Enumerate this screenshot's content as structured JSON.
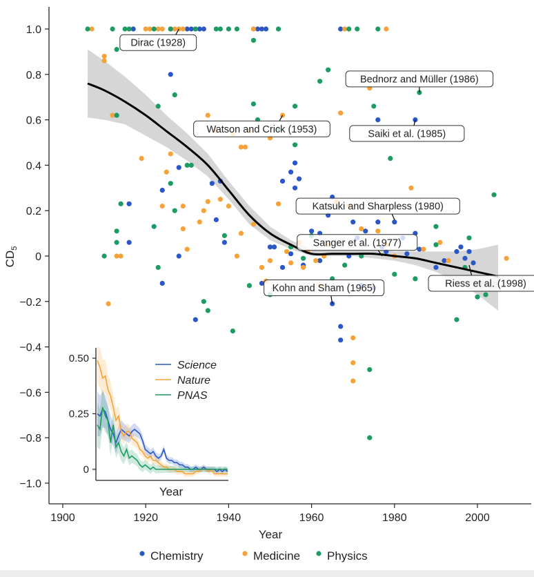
{
  "chart_data": {
    "type": "scatter",
    "title": "",
    "xlabel": "Year",
    "ylabel": "CD5",
    "ylabel_main": "CD",
    "ylabel_sub": "5",
    "xlim": [
      1895,
      2012
    ],
    "ylim": [
      -1.08,
      1.1
    ],
    "xticks": [
      1900,
      1920,
      1940,
      1960,
      1980,
      2000
    ],
    "xtick_labels": [
      "1900",
      "1920",
      "1940",
      "1960",
      "1980",
      "2000"
    ],
    "yticks": [
      1.0,
      0.8,
      0.6,
      0.4,
      0.2,
      0,
      -0.2,
      -0.4,
      -0.6,
      -0.8,
      -1.0
    ],
    "ytick_labels": [
      "1.0",
      "0.8",
      "0.6",
      "0.4",
      "0.2",
      "0",
      "−0.2",
      "−0.4",
      "−0.6",
      "−0.8",
      "−1.0"
    ],
    "grid": false,
    "legend_position": "bottom",
    "colors": {
      "Chemistry": "#2a56c6",
      "Medicine": "#f5a23a",
      "Physics": "#1e9a63"
    },
    "series": [
      {
        "name": "Chemistry",
        "points": [
          [
            1917,
            1.0
          ],
          [
            1926,
            1.0
          ],
          [
            1930,
            1.0
          ],
          [
            1931,
            1.0
          ],
          [
            1932,
            1.0
          ],
          [
            1933,
            1.0
          ],
          [
            1934,
            1.0
          ],
          [
            1946,
            1.0
          ],
          [
            1947,
            1.0
          ],
          [
            1948,
            1.0
          ],
          [
            1949,
            1.0
          ],
          [
            1967,
            1.0
          ],
          [
            1926,
            0.8
          ],
          [
            1916,
            0.23
          ],
          [
            1916,
            0.06
          ],
          [
            1924,
            0.29
          ],
          [
            1928,
            0.39
          ],
          [
            1932,
            -0.28
          ],
          [
            1936,
            0.32
          ],
          [
            1938,
            0.33
          ],
          [
            1937,
            0.16
          ],
          [
            1939,
            0.06
          ],
          [
            1950,
            0.04
          ],
          [
            1951,
            0.04
          ],
          [
            1953,
            0.33
          ],
          [
            1955,
            0.37
          ],
          [
            1956,
            0.3
          ],
          [
            1957,
            0.34
          ],
          [
            1956,
            0.41
          ],
          [
            1960,
            0.11
          ],
          [
            1962,
            0.1
          ],
          [
            1964,
            0.18
          ],
          [
            1965,
            0.26
          ],
          [
            1965,
            -0.21
          ],
          [
            1967,
            -0.31
          ],
          [
            1967,
            -0.37
          ],
          [
            1970,
            0.15
          ],
          [
            1971,
            0.08
          ],
          [
            1973,
            0.11
          ],
          [
            1976,
            0.15
          ],
          [
            1977,
            0.04
          ],
          [
            1978,
            0.02
          ],
          [
            1980,
            0.15
          ],
          [
            1982,
            0.08
          ],
          [
            1983,
            0.01
          ],
          [
            1985,
            0.1
          ],
          [
            1986,
            0.03
          ],
          [
            1976,
            0.6
          ],
          [
            1985,
            0.6
          ],
          [
            1995,
            0.02
          ],
          [
            1996,
            0.04
          ],
          [
            1997,
            -0.01
          ],
          [
            1998,
            0.02
          ],
          [
            1999,
            -0.03
          ],
          [
            1962,
            -0.02
          ],
          [
            1958,
            -0.04
          ],
          [
            1955,
            0.01
          ],
          [
            1953,
            -0.05
          ],
          [
            1972,
            -0.13
          ],
          [
            1975,
            -0.14
          ],
          [
            1990,
            -0.05
          ],
          [
            1992,
            -0.02
          ],
          [
            1969,
            0.0
          ],
          [
            1948,
            -0.12
          ],
          [
            1924,
            -0.12
          ],
          [
            1928,
            0.0
          ]
        ]
      },
      {
        "name": "Medicine",
        "points": [
          [
            1907,
            1.0
          ],
          [
            1920,
            1.0
          ],
          [
            1921,
            1.0
          ],
          [
            1923,
            1.0
          ],
          [
            1924,
            1.0
          ],
          [
            1926,
            1.0
          ],
          [
            1927,
            1.0
          ],
          [
            1928,
            1.0
          ],
          [
            1929,
            1.0
          ],
          [
            1946,
            1.0
          ],
          [
            1968,
            1.0
          ],
          [
            1978,
            1.0
          ],
          [
            1910,
            0.88
          ],
          [
            1910,
            0.86
          ],
          [
            1912,
            0.62
          ],
          [
            1919,
            0.43
          ],
          [
            1925,
            0.37
          ],
          [
            1926,
            0.45
          ],
          [
            1935,
            0.62
          ],
          [
            1937,
            0.55
          ],
          [
            1944,
            0.48
          ],
          [
            1945,
            0.55
          ],
          [
            1950,
            0.52
          ],
          [
            1953,
            0.62
          ],
          [
            1943,
            0.48
          ],
          [
            1941,
            0.54
          ],
          [
            1924,
            0.22
          ],
          [
            1929,
            0.22
          ],
          [
            1933,
            0.15
          ],
          [
            1934,
            0.2
          ],
          [
            1930,
            0.03
          ],
          [
            1911,
            -0.21
          ],
          [
            1913,
            0.0
          ],
          [
            1914,
            0.0
          ],
          [
            1940,
            0.22
          ],
          [
            1943,
            0.1
          ],
          [
            1946,
            0.14
          ],
          [
            1948,
            -0.05
          ],
          [
            1950,
            -0.02
          ],
          [
            1952,
            0.23
          ],
          [
            1954,
            0.02
          ],
          [
            1955,
            -0.03
          ],
          [
            1957,
            0.06
          ],
          [
            1958,
            -0.05
          ],
          [
            1959,
            0.02
          ],
          [
            1961,
            -0.02
          ],
          [
            1963,
            0.0
          ],
          [
            1966,
            0.24
          ],
          [
            1967,
            0.63
          ],
          [
            1969,
            0.22
          ],
          [
            1970,
            -0.36
          ],
          [
            1970,
            -0.47
          ],
          [
            1970,
            -0.55
          ],
          [
            1972,
            0.12
          ],
          [
            1974,
            0.74
          ],
          [
            1976,
            0.11
          ],
          [
            1978,
            0.05
          ],
          [
            1980,
            0.0
          ],
          [
            1984,
            0.3
          ],
          [
            1987,
            0.03
          ],
          [
            1991,
            0.06
          ],
          [
            1993,
            -0.02
          ],
          [
            2007,
            -0.01
          ],
          [
            1935,
            0.24
          ],
          [
            1929,
            0.12
          ],
          [
            1942,
            0.0
          ],
          [
            1938,
            0.25
          ],
          [
            1949,
            -0.11
          ],
          [
            1962,
            -0.13
          ],
          [
            1964,
            0.05
          ]
        ]
      },
      {
        "name": "Physics",
        "points": [
          [
            1906,
            1.0
          ],
          [
            1912,
            1.0
          ],
          [
            1915,
            1.0
          ],
          [
            1916,
            1.0
          ],
          [
            1922,
            1.0
          ],
          [
            1926,
            1.0
          ],
          [
            1932,
            1.0
          ],
          [
            1937,
            1.0
          ],
          [
            1938,
            1.0
          ],
          [
            1940,
            1.0
          ],
          [
            1942,
            1.0
          ],
          [
            1952,
            1.0
          ],
          [
            1969,
            1.0
          ],
          [
            1971,
            1.0
          ],
          [
            1976,
            1.0
          ],
          [
            1946,
            0.95
          ],
          [
            1913,
            0.91
          ],
          [
            1927,
            0.71
          ],
          [
            1923,
            0.66
          ],
          [
            1913,
            0.62
          ],
          [
            1910,
            0.0
          ],
          [
            1913,
            0.11
          ],
          [
            1913,
            0.06
          ],
          [
            1914,
            0.23
          ],
          [
            1922,
            0.13
          ],
          [
            1923,
            -0.05
          ],
          [
            1926,
            0.32
          ],
          [
            1927,
            0.2
          ],
          [
            1930,
            0.4
          ],
          [
            1931,
            0.4
          ],
          [
            1934,
            -0.2
          ],
          [
            1935,
            -0.24
          ],
          [
            1941,
            -0.33
          ],
          [
            1946,
            0.67
          ],
          [
            1947,
            0.6
          ],
          [
            1952,
            0.56
          ],
          [
            1956,
            0.66
          ],
          [
            1956,
            0.49
          ],
          [
            1962,
            0.77
          ],
          [
            1964,
            0.82
          ],
          [
            1975,
            0.66
          ],
          [
            1979,
            0.43
          ],
          [
            1986,
            0.72
          ],
          [
            1990,
            0.13
          ],
          [
            1995,
            -0.28
          ],
          [
            1974,
            -0.5
          ],
          [
            1974,
            -0.8
          ],
          [
            1972,
            0.0
          ],
          [
            1968,
            -0.04
          ],
          [
            1960,
            0.09
          ],
          [
            1955,
            0.04
          ],
          [
            1950,
            -0.17
          ],
          [
            1980,
            -0.08
          ],
          [
            1985,
            -0.1
          ],
          [
            1990,
            0.05
          ],
          [
            1997,
            -0.05
          ],
          [
            2000,
            -0.18
          ],
          [
            2002,
            -0.17
          ],
          [
            2004,
            0.27
          ],
          [
            1998,
            0.08
          ],
          [
            1965,
            -0.1
          ],
          [
            1958,
            -0.01
          ],
          [
            1945,
            -0.13
          ],
          [
            1939,
            0.09
          ]
        ]
      }
    ],
    "trend": {
      "name": "smoothed fit",
      "x": [
        1906,
        1910,
        1915,
        1920,
        1925,
        1930,
        1935,
        1940,
        1945,
        1950,
        1955,
        1960,
        1965,
        1970,
        1975,
        1980,
        1985,
        1990,
        1995,
        2000,
        2005
      ],
      "y": [
        0.76,
        0.73,
        0.68,
        0.62,
        0.55,
        0.48,
        0.4,
        0.29,
        0.18,
        0.1,
        0.05,
        0.01,
        0.01,
        0.01,
        0.01,
        0.0,
        -0.01,
        -0.03,
        -0.05,
        -0.07,
        -0.09
      ],
      "ci_lower": [
        0.61,
        0.6,
        0.58,
        0.53,
        0.48,
        0.42,
        0.35,
        0.25,
        0.14,
        0.07,
        0.03,
        0.0,
        0.0,
        0.0,
        -0.01,
        -0.02,
        -0.04,
        -0.07,
        -0.11,
        -0.17,
        -0.24
      ],
      "ci_upper": [
        0.91,
        0.86,
        0.79,
        0.71,
        0.62,
        0.54,
        0.45,
        0.33,
        0.22,
        0.13,
        0.07,
        0.03,
        0.03,
        0.03,
        0.03,
        0.02,
        0.02,
        0.02,
        0.02,
        0.03,
        0.05
      ]
    },
    "annotations": [
      {
        "label": "Dirac (1928)",
        "point": [
          1928,
          1.0
        ],
        "box_center": [
          1923,
          0.94
        ]
      },
      {
        "label": "Bednorz and Müller (1986)",
        "point": [
          1986,
          0.72
        ],
        "box_center": [
          1986,
          0.78
        ]
      },
      {
        "label": "Watson and Crick (1953)",
        "point": [
          1953,
          0.62
        ],
        "box_center": [
          1948,
          0.56
        ]
      },
      {
        "label": "Saiki et al. (1985)",
        "point": [
          1985,
          0.6
        ],
        "box_center": [
          1983,
          0.54
        ]
      },
      {
        "label": "Katsuki and Sharpless (1980)",
        "point": [
          1980,
          0.16
        ],
        "box_center": [
          1976,
          0.22
        ]
      },
      {
        "label": "Sanger et al. (1977)",
        "point": [
          1977,
          0.0
        ],
        "box_center": [
          1971,
          0.06
        ]
      },
      {
        "label": "Kohn and Sham (1965)",
        "point": [
          1965,
          -0.21
        ],
        "box_center": [
          1963,
          -0.14
        ]
      },
      {
        "label": "Riess et al. (1998)",
        "point": [
          1998,
          -0.04
        ],
        "box_center": [
          2002,
          -0.12
        ]
      }
    ],
    "inset": {
      "type": "line",
      "xlabel": "Year",
      "ylim": [
        -0.03,
        0.55
      ],
      "yticks": [
        0.5,
        0.25,
        0
      ],
      "ytick_labels": [
        "0.50",
        "0.25",
        "0"
      ],
      "x_index_range": [
        0,
        100
      ],
      "series": [
        {
          "name": "Science",
          "color": "#2a56c6",
          "values": [
            0.25,
            0.24,
            0.27,
            0.26,
            0.22,
            0.18,
            0.16,
            0.12,
            0.15,
            0.18,
            0.17,
            0.16,
            0.15,
            0.17,
            0.18,
            0.17,
            0.16,
            0.13,
            0.09,
            0.08,
            0.07,
            0.08,
            0.06,
            0.05,
            0.06,
            0.09,
            0.05,
            0.04,
            0.04,
            0.03,
            0.03,
            0.02,
            0.02,
            0.01,
            0.01,
            0.0,
            0.0,
            0.01,
            0.0,
            0.0,
            0.01,
            0.0,
            0.0,
            0.0,
            0.0,
            -0.01,
            0.0,
            -0.01,
            0.0,
            -0.01
          ]
        },
        {
          "name": "Nature",
          "color": "#f5a23a",
          "values": [
            0.49,
            0.46,
            0.41,
            0.42,
            0.36,
            0.33,
            0.28,
            0.22,
            0.24,
            0.17,
            0.15,
            0.17,
            0.17,
            0.14,
            0.13,
            0.12,
            0.09,
            0.08,
            0.06,
            0.05,
            0.06,
            0.04,
            0.04,
            0.03,
            0.02,
            0.01,
            0.01,
            0.0,
            0.0,
            0.0,
            -0.01,
            -0.01,
            -0.01,
            -0.02,
            -0.02,
            -0.02,
            -0.02,
            -0.01,
            -0.01,
            0.0,
            0.0,
            0.0,
            -0.01,
            0.0,
            -0.02,
            -0.02,
            -0.02,
            -0.02,
            -0.02,
            -0.02
          ]
        },
        {
          "name": "PNAS",
          "color": "#1e9a63",
          "values": [
            0.2,
            0.18,
            0.28,
            0.24,
            0.22,
            0.12,
            0.2,
            0.1,
            0.12,
            0.08,
            0.06,
            0.09,
            0.05,
            0.06,
            0.05,
            0.04,
            0.02,
            0.01,
            0.02,
            0.01,
            0.0,
            0.01,
            0.0,
            0.0,
            0.0,
            0.0,
            0.0,
            0.0,
            0.0,
            0.0,
            0.0,
            0.0,
            0.0,
            0.0,
            0.0,
            0.0,
            0.0,
            0.0,
            0.0,
            0.0,
            0.0,
            0.0,
            0.0,
            0.0,
            0.0,
            0.0,
            0.0,
            0.0,
            0.0,
            0.0
          ]
        }
      ]
    },
    "legend": [
      {
        "label": "Chemistry",
        "color": "#2a56c6"
      },
      {
        "label": "Medicine",
        "color": "#f5a23a"
      },
      {
        "label": "Physics",
        "color": "#1e9a63"
      }
    ]
  }
}
